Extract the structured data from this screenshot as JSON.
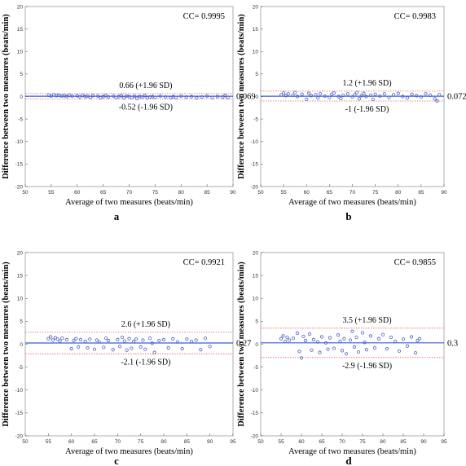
{
  "chart_data": [
    {
      "type": "scatter",
      "panel_label": "a",
      "cc_text": "CC= 0.9995",
      "xlabel": "Average of two measures (beats/min)",
      "ylabel": "Difference between two measures (beats/min)",
      "xlim": [
        50,
        90
      ],
      "ylim": [
        -20,
        20
      ],
      "xticks": [
        "50",
        "55",
        "60",
        "65",
        "70",
        "75",
        "80",
        "85",
        "90"
      ],
      "yticks": [
        "20",
        "15",
        "10",
        "5",
        "0",
        "-5",
        "-10",
        "-15",
        "-20"
      ],
      "mean": 0.069,
      "mean_label": "0.069",
      "upper": 0.66,
      "upper_label": "0.66 (+1.96 SD)",
      "lower": -0.52,
      "lower_label": "-0.52 (-1.96 SD)",
      "x": [
        54.5,
        55,
        55.5,
        56,
        56.5,
        57,
        57.5,
        58,
        58.5,
        59,
        60,
        60.5,
        61,
        61.5,
        62,
        62.5,
        63,
        64,
        64.5,
        65,
        65.5,
        66,
        67,
        67.5,
        68,
        68.5,
        69,
        69.5,
        70,
        70.5,
        71,
        71.5,
        72,
        72.5,
        73,
        73.5,
        74,
        74.5,
        75,
        76,
        77,
        78,
        78.5,
        79,
        80,
        81,
        82,
        83,
        84,
        85,
        86,
        87,
        88,
        88.5,
        89
      ],
      "y": [
        0.3,
        0.1,
        0.4,
        0.2,
        0.3,
        0.1,
        0.2,
        0.0,
        0.3,
        0.1,
        0.2,
        -0.1,
        0.3,
        0.0,
        0.1,
        -0.2,
        0.2,
        0.1,
        -0.3,
        0.0,
        0.2,
        -0.1,
        0.1,
        -0.2,
        0.0,
        0.2,
        -0.3,
        0.1,
        0.0,
        -0.2,
        0.1,
        -0.4,
        0.0,
        -0.1,
        0.2,
        -0.3,
        -0.1,
        0.0,
        -0.2,
        0.1,
        -0.1,
        -0.3,
        0.0,
        -0.2,
        0.1,
        -0.1,
        0.0,
        -0.3,
        -0.1,
        0.1,
        -0.2,
        0.0,
        -0.1,
        0.2,
        -0.2
      ]
    },
    {
      "type": "scatter",
      "panel_label": "b",
      "cc_text": "CC= 0.9983",
      "xlabel": "Average of two measures (beats/min)",
      "ylabel": "Difference between two measures (beats/min)",
      "xlim": [
        50,
        90
      ],
      "ylim": [
        -20,
        20
      ],
      "xticks": [
        "50",
        "55",
        "60",
        "65",
        "70",
        "75",
        "80",
        "85",
        "90"
      ],
      "yticks": [
        "20",
        "15",
        "10",
        "5",
        "0",
        "-5",
        "-10",
        "-15",
        "-20"
      ],
      "mean": 0.072,
      "mean_label": "0.072",
      "upper": 1.2,
      "upper_label": "1.2 (+1.96 SD)",
      "lower": -1,
      "lower_label": "-1 (-1.96 SD)",
      "x": [
        54.5,
        55,
        55.5,
        56,
        57,
        57.5,
        58,
        59,
        60,
        60.5,
        61,
        62,
        62.5,
        63,
        64,
        65,
        65.5,
        66,
        67,
        67.5,
        68,
        69,
        70,
        70.5,
        71,
        71.5,
        72,
        72.5,
        73,
        74,
        74.5,
        75,
        76,
        77,
        78,
        79,
        80,
        81,
        82,
        83,
        84,
        85,
        86,
        87,
        88,
        88.5,
        89
      ],
      "y": [
        0.4,
        0.8,
        0.2,
        0.6,
        0.3,
        0.9,
        0.0,
        0.5,
        -0.6,
        0.7,
        0.2,
        0.4,
        -0.3,
        0.6,
        0.1,
        -0.2,
        0.5,
        0.8,
        0.0,
        -0.4,
        0.3,
        0.6,
        -0.1,
        0.4,
        0.9,
        -0.5,
        0.2,
        0.7,
        0.0,
        0.3,
        -0.6,
        0.5,
        0.1,
        0.6,
        -0.2,
        0.4,
        0.7,
        0.0,
        -0.3,
        0.5,
        0.2,
        -0.1,
        0.6,
        0.3,
        -0.5,
        -1.0,
        0.4
      ]
    },
    {
      "type": "scatter",
      "panel_label": "c",
      "cc_text": "CC= 0.9921",
      "xlabel": "Average of two measures (beats/min)",
      "ylabel": "Difference between two measures (beats/min)",
      "xlim": [
        50,
        95
      ],
      "ylim": [
        -20,
        20
      ],
      "xticks": [
        "50",
        "55",
        "60",
        "65",
        "70",
        "75",
        "80",
        "85",
        "90",
        "95"
      ],
      "yticks": [
        "20",
        "15",
        "10",
        "5",
        "0",
        "-5",
        "-10",
        "-15",
        "-20"
      ],
      "mean": 0.27,
      "mean_label": "0.27",
      "upper": 2.6,
      "upper_label": "2.6 (+1.96 SD)",
      "lower": -2.1,
      "lower_label": "-2.1 (-1.96 SD)",
      "x": [
        55,
        55.5,
        56,
        56.5,
        57,
        57.5,
        58,
        59,
        60,
        60.5,
        61,
        61.5,
        62,
        63,
        63.5,
        64,
        65,
        65.5,
        66,
        67,
        67.5,
        68,
        69,
        70,
        70.5,
        71,
        71.5,
        72,
        72.5,
        73,
        73.5,
        74,
        75,
        75.5,
        76,
        77,
        77.5,
        78,
        79,
        80,
        81,
        82,
        83,
        84,
        85,
        86,
        87,
        88,
        89,
        90
      ],
      "y": [
        1.2,
        1.6,
        0.9,
        1.4,
        1.1,
        0.7,
        1.3,
        1.0,
        -1.0,
        0.8,
        1.2,
        -0.6,
        1.0,
        0.6,
        -0.8,
        1.1,
        -1.1,
        0.9,
        0.5,
        -0.7,
        1.3,
        0.8,
        -1.2,
        1.0,
        -0.5,
        1.5,
        0.7,
        -1.3,
        1.2,
        -0.9,
        0.6,
        1.1,
        -0.6,
        0.9,
        -1.1,
        1.3,
        0.2,
        -1.8,
        0.8,
        1.0,
        -0.8,
        1.2,
        0.5,
        -1.0,
        1.1,
        0.6,
        0.9,
        -1.2,
        1.3,
        -0.5
      ]
    },
    {
      "type": "scatter",
      "panel_label": "d",
      "cc_text": "CC= 0.9855",
      "xlabel": "Average of two measures (beats/min)",
      "ylabel": "Difference between two measures (beats/min)",
      "xlim": [
        50,
        95
      ],
      "ylim": [
        -20,
        20
      ],
      "xticks": [
        "50",
        "55",
        "60",
        "65",
        "70",
        "75",
        "80",
        "85",
        "90",
        "95"
      ],
      "yticks": [
        "20",
        "15",
        "10",
        "5",
        "0",
        "-5",
        "-10",
        "-15",
        "-20"
      ],
      "mean": 0.3,
      "mean_label": "0.3",
      "upper": 3.5,
      "upper_label": "3.5 (+1.96 SD)",
      "lower": -2.9,
      "lower_label": "-2.9 (-1.96 SD)",
      "x": [
        55,
        55.5,
        56,
        56.5,
        57,
        58,
        59,
        59.5,
        60,
        60.5,
        61,
        62,
        62.5,
        63,
        64,
        64.5,
        65,
        66,
        66.5,
        67,
        68,
        69,
        69.5,
        70,
        70.5,
        71,
        72,
        72.5,
        73,
        73.5,
        74,
        75,
        75.5,
        76,
        77,
        78,
        79,
        80,
        81,
        82,
        83,
        84,
        85,
        86,
        87,
        88,
        88.5,
        89
      ],
      "y": [
        1.2,
        1.8,
        0.6,
        1.5,
        0.9,
        1.3,
        2.4,
        -1.6,
        -3.0,
        1.7,
        0.8,
        2.2,
        -1.3,
        1.0,
        0.5,
        -1.8,
        1.6,
        0.3,
        -1.1,
        1.4,
        -0.9,
        2.0,
        0.6,
        -1.4,
        1.2,
        -2.1,
        0.9,
        2.8,
        -0.6,
        1.5,
        -1.7,
        2.5,
        0.4,
        -1.2,
        1.8,
        -0.8,
        1.2,
        2.1,
        -1.0,
        1.5,
        0.6,
        -1.5,
        1.1,
        -0.4,
        1.6,
        -1.9,
        0.8,
        1.2
      ]
    }
  ]
}
